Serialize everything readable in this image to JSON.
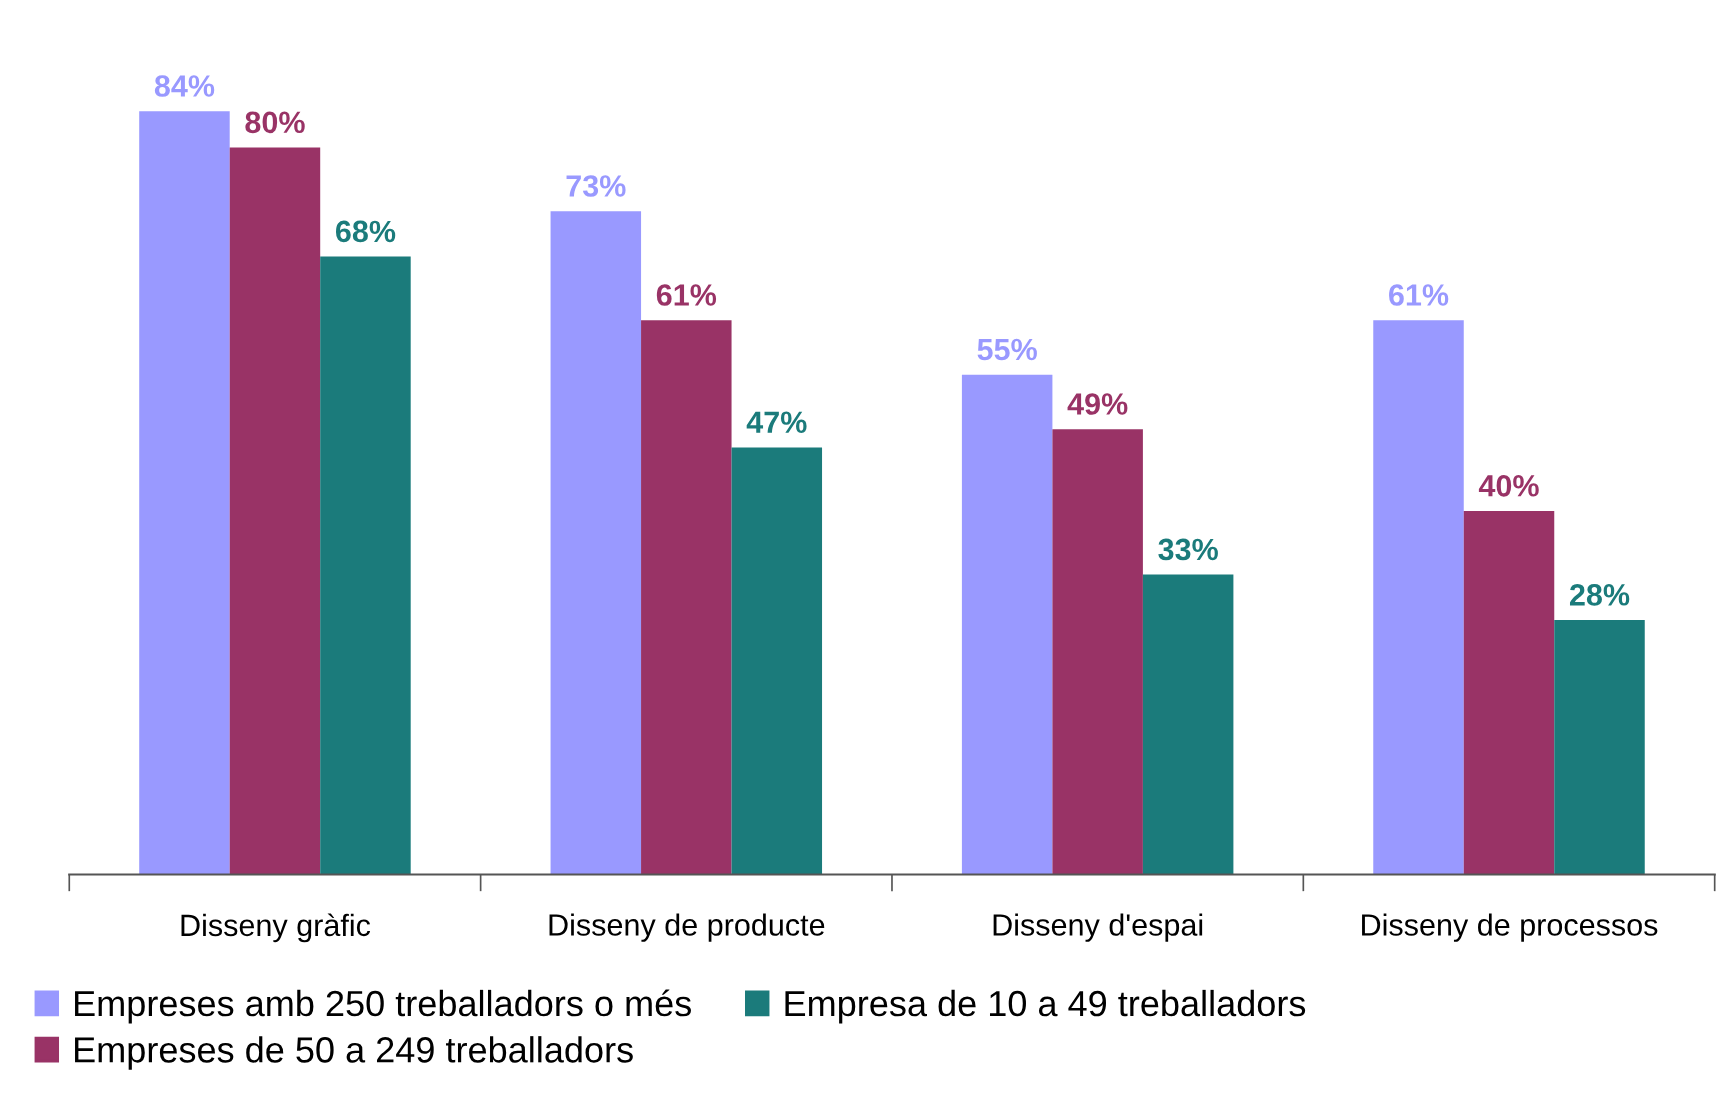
{
  "chart_data": {
    "type": "bar",
    "categories": [
      "Disseny gràfic",
      "Disseny de producte",
      "Disseny d'espai",
      "Disseny de processos"
    ],
    "series": [
      {
        "name": "Empreses amb 250 treballadors o més",
        "color": "#9999ff",
        "values": [
          84,
          73,
          55,
          61
        ],
        "value_labels": [
          "84%",
          "73%",
          "55%",
          "61%"
        ]
      },
      {
        "name": "Empreses de 50 a 249 treballadors",
        "color": "#993366",
        "values": [
          80,
          61,
          49,
          40
        ],
        "value_labels": [
          "80%",
          "61%",
          "49%",
          "40%"
        ]
      },
      {
        "name": "Empresa de 10 a 49 treballadors",
        "color": "#1b7b7b",
        "values": [
          68,
          47,
          33,
          28
        ],
        "value_labels": [
          "68%",
          "47%",
          "33%",
          "28%"
        ]
      }
    ],
    "grid": false,
    "legend": "bottom"
  }
}
